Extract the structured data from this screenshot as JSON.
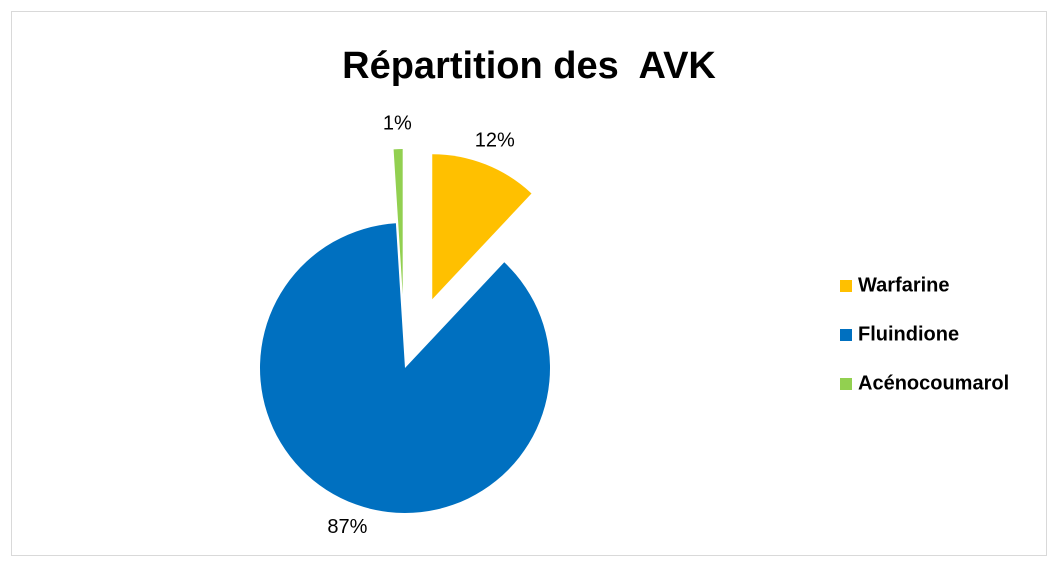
{
  "chart_data": {
    "type": "pie",
    "title": "Répartition des  AVK",
    "categories": [
      "Warfarine",
      "Fluindione",
      "Acénocoumarol"
    ],
    "values": [
      12,
      87,
      1
    ],
    "value_labels": [
      "12%",
      "87%",
      "1%"
    ],
    "colors": [
      "#FFC000",
      "#0070C0",
      "#92D050"
    ],
    "legend": "right"
  }
}
